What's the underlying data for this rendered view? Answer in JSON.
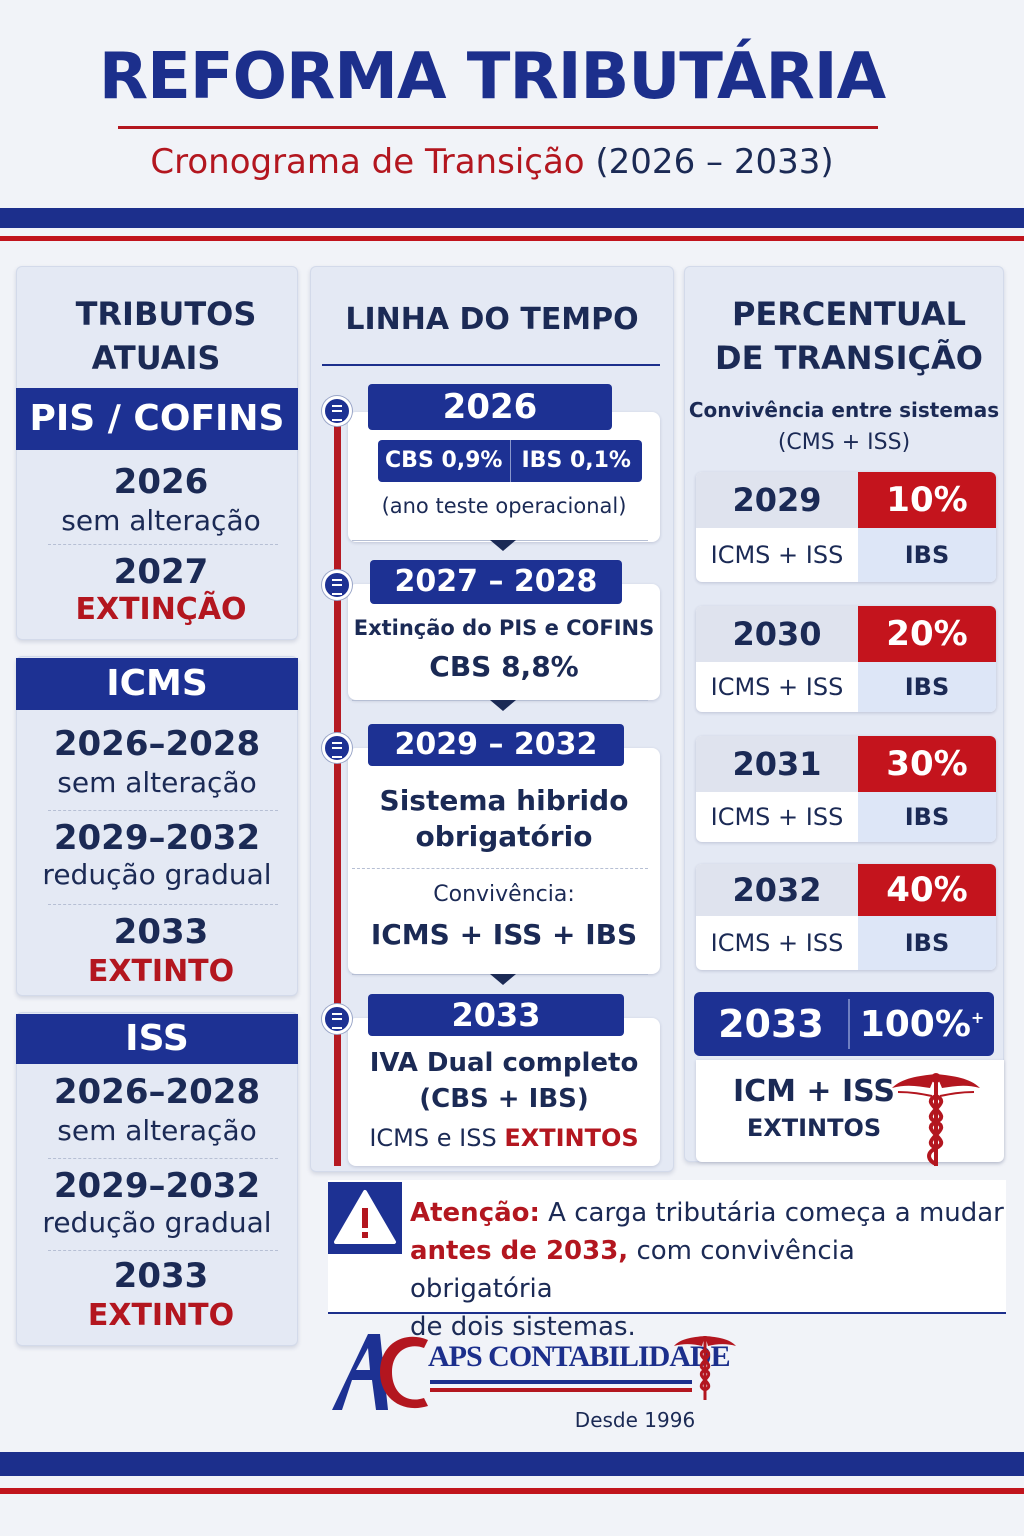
{
  "header": {
    "title": "REFORMA TRIBUTÁRIA",
    "subtitle": "Cronograma de Transição",
    "subtitle_years": "(2026 – 2033)"
  },
  "left": {
    "heading_1": "TRIBUTOS",
    "heading_2": "ATUAIS",
    "groups": [
      {
        "name": "PIS / COFINS",
        "items": [
          {
            "year": "2026",
            "text": "sem alteração"
          },
          {
            "year": "2027",
            "text": "EXTINÇÃO"
          }
        ]
      },
      {
        "name": "ICMS",
        "items": [
          {
            "year": "2026–2028",
            "text": "sem alteração"
          },
          {
            "year": "2029–2032",
            "text": "redução gradual"
          },
          {
            "year": "2033",
            "text": "EXTINTO"
          }
        ]
      },
      {
        "name": "ISS",
        "items": [
          {
            "year": "2026–2028",
            "text": "sem alteração"
          },
          {
            "year": "2029–2032",
            "text": "redução gradual"
          },
          {
            "year": "2033",
            "text": "EXTINTO"
          }
        ]
      }
    ]
  },
  "timeline": {
    "heading": "LINHA DO TEMPO",
    "s1": {
      "year": "2026",
      "cbs": "CBS 0,9%",
      "ibs": "IBS 0,1%",
      "note": "(ano teste operacional)"
    },
    "s2": {
      "year": "2027 – 2028",
      "line1": "Extinção do PIS e COFINS",
      "line2": "CBS 8,8%"
    },
    "s3": {
      "year": "2029 – 2032",
      "line1": "Sistema hibrido",
      "line2": "obrigatório",
      "line3": "Convivência:",
      "line4": "ICMS + ISS + IBS"
    },
    "s4": {
      "year": "2033",
      "line1": "IVA Dual completo",
      "line2": "(CBS + IBS)",
      "line3_a": "ICMS e ISS",
      "line3_b": "EXTINTOS"
    }
  },
  "percent": {
    "heading_1": "PERCENTUAL",
    "heading_2": "DE TRANSIÇÃO",
    "note_1": "Convivência entre sistemas",
    "note_2": "(CMS + ISS)",
    "rows": [
      {
        "year": "2029",
        "pct": "10%",
        "left": "ICMS + ISS",
        "right": "IBS"
      },
      {
        "year": "2030",
        "pct": "20%",
        "left": "ICMS + ISS",
        "right": "IBS"
      },
      {
        "year": "2031",
        "pct": "30%",
        "left": "ICMS + ISS",
        "right": "IBS"
      },
      {
        "year": "2032",
        "pct": "40%",
        "left": "ICMS + ISS",
        "right": "IBS"
      }
    ],
    "final": {
      "year": "2033",
      "pct": "100%",
      "sup": "+",
      "line1": "ICM + ISS",
      "line2": "EXTINTOS"
    }
  },
  "alert": {
    "bold": "Atenção:",
    "text_1": " A carga tributária começa a mudar",
    "red": "antes de 2033,",
    "text_2": " com convivência obrigatória",
    "text_3": "de dois sistemas."
  },
  "logo": {
    "initials": "AC",
    "name": "APS CONTABILIDADE",
    "since": "Desde 1996"
  },
  "colors": {
    "navy": "#1c2f8c",
    "red": "#b3161f",
    "background": "#f1f3f8"
  }
}
